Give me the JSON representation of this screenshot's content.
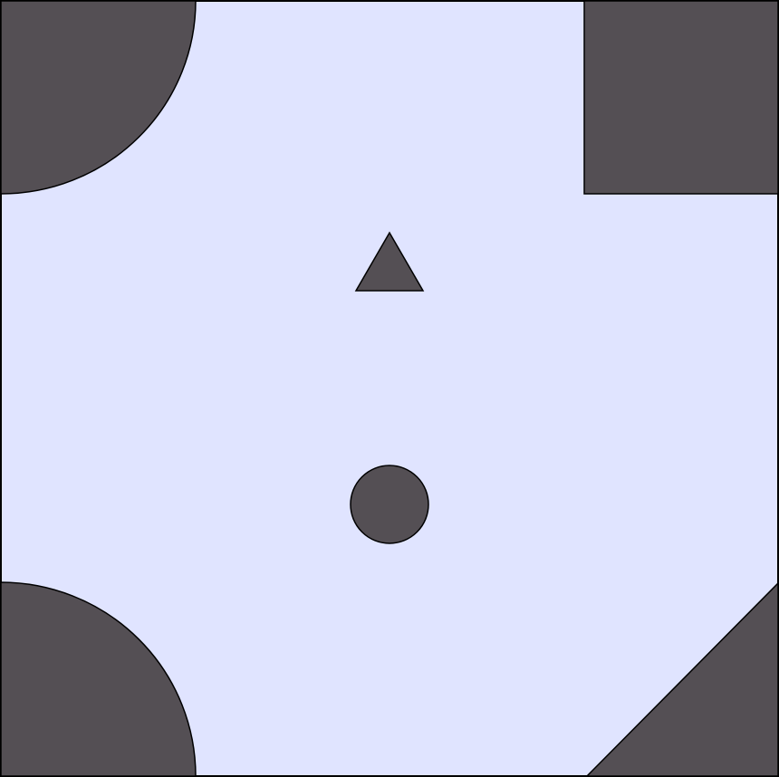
{
  "colors": {
    "board_fill": "#e0e4ff",
    "obstacle_fill": "#544f54",
    "outline": "#000000"
  },
  "board": {
    "obstacles": [
      {
        "name": "top-left-quarter-circle-obstacle",
        "shape": "quarter-circle"
      },
      {
        "name": "top-right-square-obstacle",
        "shape": "square"
      },
      {
        "name": "bottom-left-quarter-circle-obstacle",
        "shape": "quarter-circle"
      },
      {
        "name": "bottom-right-triangle-obstacle",
        "shape": "triangle"
      }
    ],
    "pieces": [
      {
        "name": "triangle-piece",
        "shape": "triangle"
      },
      {
        "name": "circle-piece",
        "shape": "circle"
      }
    ]
  }
}
